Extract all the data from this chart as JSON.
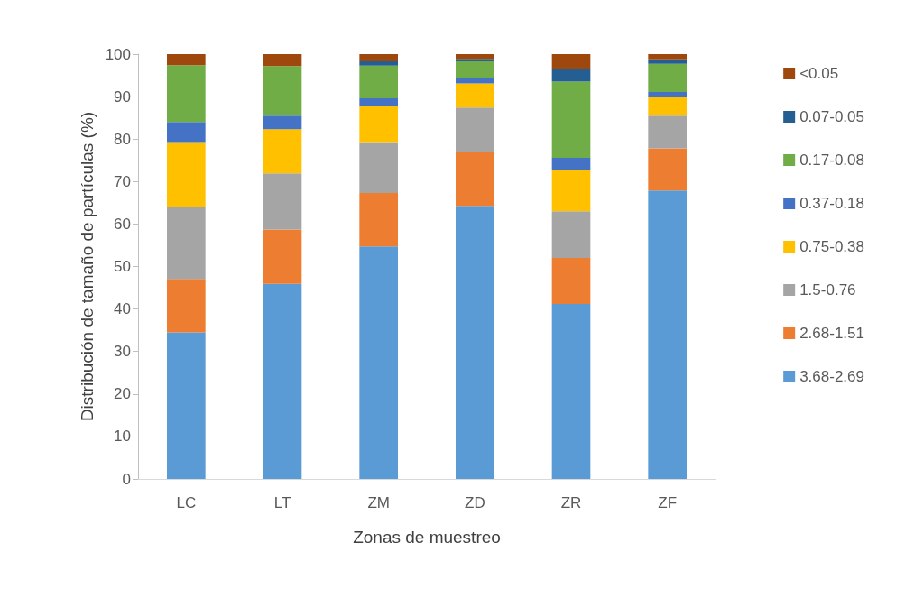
{
  "chart_data": {
    "type": "bar",
    "stacked": true,
    "xlabel": "Zonas de muestreo",
    "ylabel": "Distribución de tamaño de partículas (%)",
    "categories": [
      "LC",
      "LT",
      "ZM",
      "ZD",
      "ZR",
      "ZF"
    ],
    "series": [
      {
        "name": "3.68-2.69",
        "color": "#5b9bd5",
        "values": [
          34.5,
          45.9,
          54.7,
          64.3,
          41.2,
          67.9
        ]
      },
      {
        "name": "2.68-1.51",
        "color": "#ed7d31",
        "values": [
          12.6,
          12.8,
          12.6,
          12.6,
          10.8,
          9.9
        ]
      },
      {
        "name": "1.5-0.76",
        "color": "#a5a5a5",
        "values": [
          16.8,
          13.2,
          12.0,
          10.5,
          11.0,
          7.7
        ]
      },
      {
        "name": "0.75-0.38",
        "color": "#ffc000",
        "values": [
          15.4,
          10.4,
          8.4,
          5.7,
          9.7,
          4.4
        ]
      },
      {
        "name": "0.37-0.18",
        "color": "#4472c4",
        "values": [
          4.7,
          3.2,
          1.9,
          1.3,
          2.9,
          1.2
        ]
      },
      {
        "name": "0.17-0.08",
        "color": "#70ad47",
        "values": [
          13.4,
          11.7,
          7.7,
          3.9,
          17.9,
          6.6
        ]
      },
      {
        "name": "0.07-0.05",
        "color": "#255e91",
        "values": [
          0,
          0,
          1.0,
          0.6,
          3.0,
          1.1
        ]
      },
      {
        "name": "<0.05",
        "color": "#9e480e",
        "values": [
          2.6,
          2.8,
          1.7,
          1.1,
          3.5,
          1.2
        ]
      }
    ],
    "ylim": [
      0,
      100
    ],
    "yticks": [
      0,
      10,
      20,
      30,
      40,
      50,
      60,
      70,
      80,
      90,
      100
    ],
    "grid": false,
    "legend": "right"
  }
}
